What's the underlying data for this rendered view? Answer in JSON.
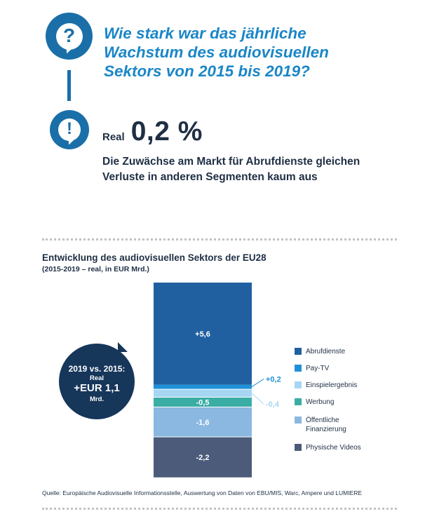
{
  "question": {
    "icon": "question-icon",
    "glyph": "?",
    "text": "Wie stark war das jährliche Wachstum des audiovisuellen Sektors von 2015 bis 2019?"
  },
  "answer": {
    "icon": "exclamation-icon",
    "glyph": "!",
    "prefix": "Real",
    "value": "0,2 %",
    "text": "Die Zuwächse am Markt für Abrufdienste gleichen Verluste in anderen Segmenten kaum aus"
  },
  "summary": {
    "line1": "2019 vs. 2015:",
    "line2": "Real",
    "line3": "+EUR 1,1",
    "line4": "Mrd."
  },
  "chart_data": {
    "type": "bar",
    "title": "Entwicklung des audiovisuellen Sektors der EU28",
    "subtitle": "(2015-2019 – real, in EUR Mrd.)",
    "categories": [
      ""
    ],
    "series": [
      {
        "name": "Abrufdienste",
        "values": [
          5.6
        ],
        "label": "+5,6",
        "color": "#2160a0",
        "label_position": "inside"
      },
      {
        "name": "Pay-TV",
        "values": [
          0.2
        ],
        "label": "+0,2",
        "color": "#1f90d8",
        "label_position": "outside"
      },
      {
        "name": "Einspielergebnis",
        "values": [
          -0.4
        ],
        "label": "-0,4",
        "color": "#a6d6f2",
        "label_position": "outside"
      },
      {
        "name": "Werbung",
        "values": [
          -0.5
        ],
        "label": "-0,5",
        "color": "#3aada4",
        "label_position": "inside"
      },
      {
        "name": "Öffentliche Finanzierung",
        "values": [
          -1.6
        ],
        "label": "-1,6",
        "color": "#8ab8e0",
        "label_position": "inside"
      },
      {
        "name": "Physische Videos",
        "values": [
          -2.2
        ],
        "label": "-2,2",
        "color": "#4c5b79",
        "label_position": "inside"
      }
    ],
    "legend": [
      "Abrufdienste",
      "Pay-TV",
      "Einspielergebnis",
      "Werbung",
      "Öffentliche Finanzierung",
      "Physische Videos"
    ],
    "legend_position": "right",
    "grid": false
  },
  "source": "Quelle: Europäische Audiovisuelle Informationsstelle, Auswertung von Daten von EBU/MIS, Warc, Ampere und LUMIERE"
}
